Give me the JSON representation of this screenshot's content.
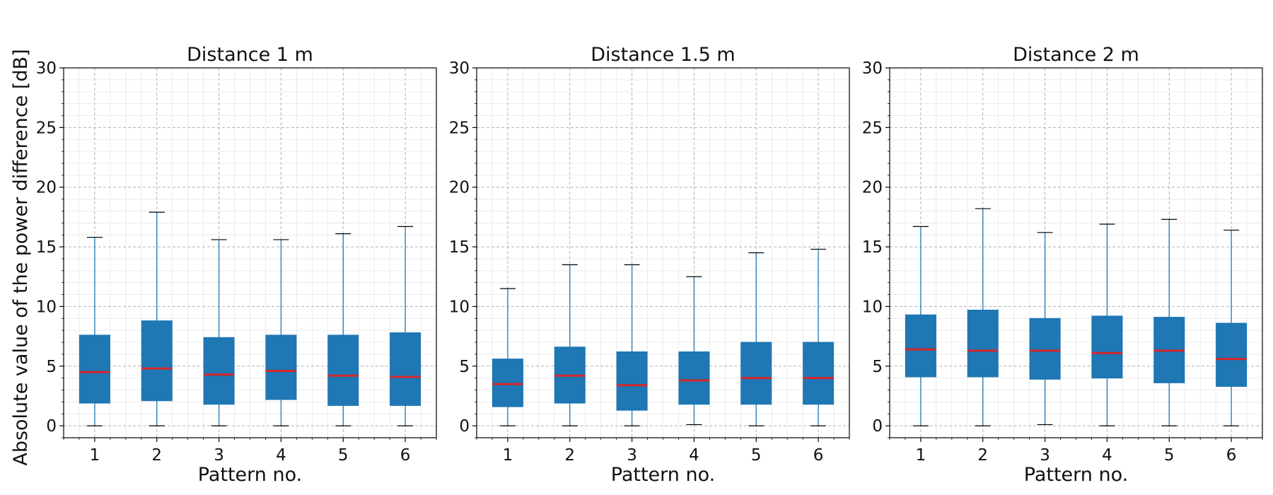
{
  "figure": {
    "ylabel": "Absolute value of the power difference [dB]"
  },
  "colors": {
    "box_fill": "#1f77b4",
    "whisker": "#1f77b4",
    "median": "#d62728",
    "cap": "#000000",
    "major_grid": "#b0b0b0",
    "minor_grid": "#e6e6e6"
  },
  "chart_data": [
    {
      "type": "box",
      "title": "Distance 1 m",
      "xlabel": "Pattern no.",
      "categories": [
        "1",
        "2",
        "3",
        "4",
        "5",
        "6"
      ],
      "ylim": [
        -1,
        30
      ],
      "yticks": [
        0,
        5,
        10,
        15,
        20,
        25,
        30
      ],
      "grid": true,
      "boxes": [
        {
          "min": 0,
          "q1": 1.9,
          "median": 4.5,
          "q3": 7.6,
          "max": 15.8
        },
        {
          "min": 0,
          "q1": 2.1,
          "median": 4.8,
          "q3": 8.8,
          "max": 17.9
        },
        {
          "min": 0,
          "q1": 1.8,
          "median": 4.3,
          "q3": 7.4,
          "max": 15.6
        },
        {
          "min": 0,
          "q1": 2.2,
          "median": 4.6,
          "q3": 7.6,
          "max": 15.6
        },
        {
          "min": 0,
          "q1": 1.7,
          "median": 4.2,
          "q3": 7.6,
          "max": 16.1
        },
        {
          "min": 0,
          "q1": 1.7,
          "median": 4.1,
          "q3": 7.8,
          "max": 16.7
        }
      ]
    },
    {
      "type": "box",
      "title": "Distance 1.5 m",
      "xlabel": "Pattern no.",
      "categories": [
        "1",
        "2",
        "3",
        "4",
        "5",
        "6"
      ],
      "ylim": [
        -1,
        30
      ],
      "yticks": [
        0,
        5,
        10,
        15,
        20,
        25,
        30
      ],
      "grid": true,
      "boxes": [
        {
          "min": 0,
          "q1": 1.6,
          "median": 3.5,
          "q3": 5.6,
          "max": 11.5
        },
        {
          "min": 0,
          "q1": 1.9,
          "median": 4.2,
          "q3": 6.6,
          "max": 13.5
        },
        {
          "min": 0,
          "q1": 1.3,
          "median": 3.4,
          "q3": 6.2,
          "max": 13.5
        },
        {
          "min": 0.1,
          "q1": 1.8,
          "median": 3.8,
          "q3": 6.2,
          "max": 12.5
        },
        {
          "min": 0,
          "q1": 1.8,
          "median": 4.0,
          "q3": 7.0,
          "max": 14.5
        },
        {
          "min": 0,
          "q1": 1.8,
          "median": 4.0,
          "q3": 7.0,
          "max": 14.8
        }
      ]
    },
    {
      "type": "box",
      "title": "Distance 2 m",
      "xlabel": "Pattern no.",
      "categories": [
        "1",
        "2",
        "3",
        "4",
        "5",
        "6"
      ],
      "ylim": [
        -1,
        30
      ],
      "yticks": [
        0,
        5,
        10,
        15,
        20,
        25,
        30
      ],
      "grid": true,
      "boxes": [
        {
          "min": 0,
          "q1": 4.1,
          "median": 6.4,
          "q3": 9.3,
          "max": 16.7
        },
        {
          "min": 0,
          "q1": 4.1,
          "median": 6.3,
          "q3": 9.7,
          "max": 18.2
        },
        {
          "min": 0.1,
          "q1": 3.9,
          "median": 6.3,
          "q3": 9.0,
          "max": 16.2
        },
        {
          "min": 0,
          "q1": 4.0,
          "median": 6.1,
          "q3": 9.2,
          "max": 16.9
        },
        {
          "min": 0,
          "q1": 3.6,
          "median": 6.3,
          "q3": 9.1,
          "max": 17.3
        },
        {
          "min": 0,
          "q1": 3.3,
          "median": 5.6,
          "q3": 8.6,
          "max": 16.4
        }
      ]
    }
  ]
}
